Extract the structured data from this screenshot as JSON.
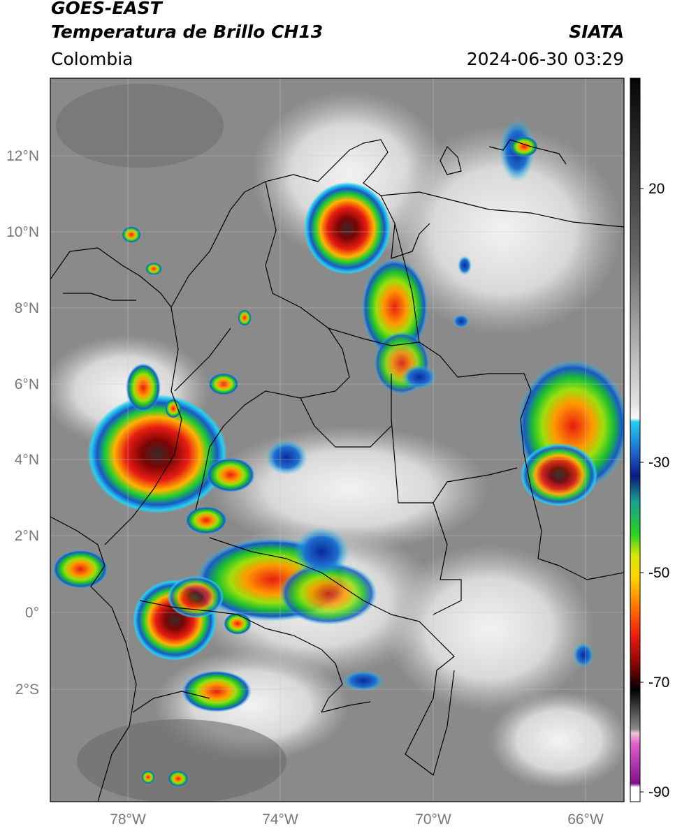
{
  "header": {
    "satellite": "GOES-EAST",
    "product": "Temperatura de Brillo CH13",
    "region": "Colombia",
    "organization": "SIATA",
    "timestamp": "2024-06-30 03:29"
  },
  "map": {
    "lat_ticks": [
      "12°N",
      "10°N",
      "8°N",
      "6°N",
      "4°N",
      "2°N",
      "0°",
      "2°S"
    ],
    "lon_ticks": [
      "78°W",
      "74°W",
      "70°W",
      "66°W"
    ]
  },
  "colorbar": {
    "ticks": [
      "20",
      "-30",
      "-50",
      "-70",
      "-90"
    ]
  }
}
